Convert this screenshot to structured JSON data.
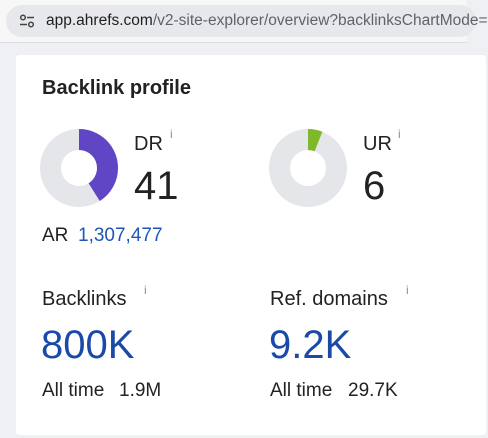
{
  "browser": {
    "url_host": "app.ahrefs.com",
    "url_path": "/v2-site-explorer/overview?backlinksChartMode="
  },
  "card": {
    "title": "Backlink profile",
    "dr": {
      "label": "DR",
      "info": "i",
      "value": "41",
      "ring_fraction": 0.41,
      "ring_color": "#6045c5"
    },
    "ur": {
      "label": "UR",
      "info": "i",
      "value": "6",
      "ring_fraction": 0.06,
      "ring_color": "#7fb82a"
    },
    "ring_track_color": "#e4e6ea",
    "ar": {
      "label": "AR",
      "value": "1,307,477"
    },
    "backlinks": {
      "label": "Backlinks",
      "info": "i",
      "value": "800K",
      "all_time_label": "All time",
      "all_time_value": "1.9M"
    },
    "ref_domains": {
      "label": "Ref. domains",
      "info": "i",
      "value": "9.2K",
      "all_time_label": "All time",
      "all_time_value": "29.7K"
    }
  }
}
